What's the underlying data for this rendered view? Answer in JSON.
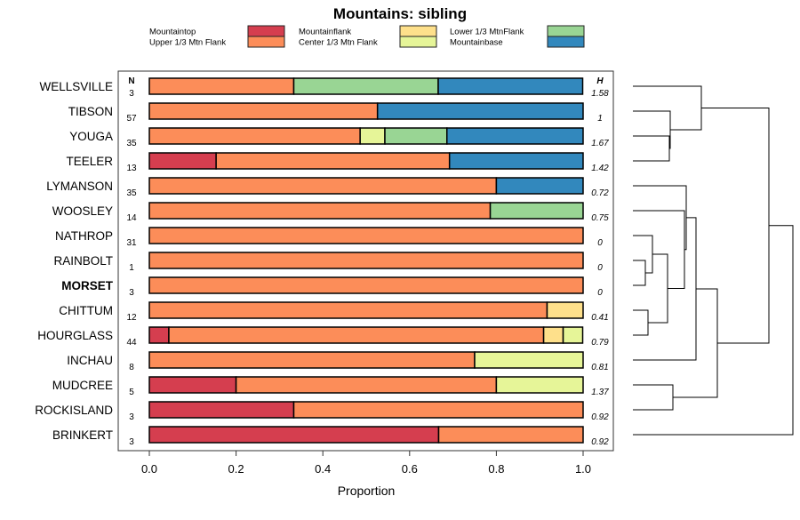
{
  "chart_data": {
    "type": "bar",
    "stacked": true,
    "orientation": "horizontal",
    "title": "Mountains: sibling",
    "xlabel": "Proportion",
    "ylabel": "",
    "xlim": [
      0,
      1
    ],
    "x_ticks": [
      "0.0",
      "0.2",
      "0.4",
      "0.6",
      "0.8",
      "1.0"
    ],
    "n_header": "N",
    "h_header": "H",
    "legend_position": "top",
    "legend": [
      {
        "name": "Mountaintop",
        "color": "#D53E4F"
      },
      {
        "name": "Upper 1/3 Mtn Flank",
        "color": "#FC8D59"
      },
      {
        "name": "Mountainflank",
        "color": "#FEE08B"
      },
      {
        "name": "Center 1/3 Mtn Flank",
        "color": "#E6F598"
      },
      {
        "name": "Lower 1/3 MtnFlank",
        "color": "#99D594"
      },
      {
        "name": "Mountainbase",
        "color": "#3288BD"
      }
    ],
    "categories": [
      "WELLSVILLE",
      "TIBSON",
      "YOUGA",
      "TEELER",
      "LYMANSON",
      "WOOSLEY",
      "NATHROP",
      "RAINBOLT",
      "MORSET",
      "CHITTUM",
      "HOURGLASS",
      "INCHAU",
      "MUDCREE",
      "ROCKISLAND",
      "BRINKERT"
    ],
    "highlighted": "MORSET",
    "N": [
      "3",
      "57",
      "35",
      "13",
      "35",
      "14",
      "31",
      "1",
      "3",
      "12",
      "44",
      "8",
      "5",
      "3",
      "3"
    ],
    "H": [
      "1.58",
      "1",
      "1.67",
      "1.42",
      "0.72",
      "0.75",
      "0",
      "0",
      "0",
      "0.41",
      "0.79",
      "0.81",
      "1.37",
      "0.92",
      "0.92"
    ],
    "series": [
      {
        "name": "Mountaintop",
        "values": [
          0,
          0,
          0,
          0.154,
          0,
          0,
          0,
          0,
          0,
          0,
          0.045,
          0,
          0.2,
          0.333,
          0.667
        ]
      },
      {
        "name": "Upper 1/3 Mtn Flank",
        "values": [
          0.333,
          0.526,
          0.486,
          0.538,
          0.8,
          0.786,
          1,
          1,
          1,
          0.917,
          0.864,
          0.75,
          0.6,
          0.667,
          0.333
        ]
      },
      {
        "name": "Mountainflank",
        "values": [
          0,
          0,
          0,
          0,
          0,
          0,
          0,
          0,
          0,
          0.083,
          0.045,
          0,
          0,
          0,
          0
        ]
      },
      {
        "name": "Center 1/3 Mtn Flank",
        "values": [
          0,
          0,
          0.057,
          0,
          0,
          0,
          0,
          0,
          0,
          0,
          0.045,
          0.25,
          0.2,
          0,
          0
        ]
      },
      {
        "name": "Lower 1/3 MtnFlank",
        "values": [
          0.333,
          0,
          0.143,
          0,
          0,
          0.214,
          0,
          0,
          0,
          0,
          0,
          0,
          0,
          0,
          0
        ]
      },
      {
        "name": "Mountainbase",
        "values": [
          0.333,
          0.474,
          0.314,
          0.308,
          0.2,
          0,
          0,
          0,
          0,
          0,
          0,
          0,
          0,
          0,
          0
        ]
      }
    ]
  }
}
